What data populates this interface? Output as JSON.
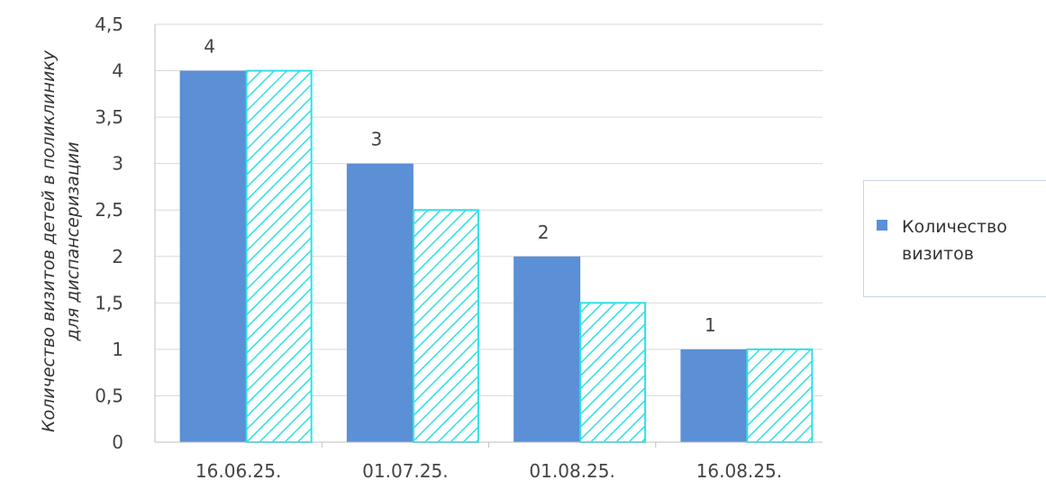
{
  "chart_data": {
    "type": "bar",
    "title": "",
    "xlabel": "",
    "ylabel": "Количество визитов детей в поликлинику для диспансеризации",
    "categories": [
      "16.06.25.",
      "01.07.25.",
      "01.08.25.",
      "16.08.25."
    ],
    "series": [
      {
        "name": "Количество визитов",
        "values": [
          4,
          3,
          2,
          1
        ],
        "color": "#5b8fd6",
        "data_labels": [
          "4",
          "3",
          "2",
          "1"
        ]
      },
      {
        "values": [
          4,
          2.5,
          1.5,
          1
        ],
        "color": "#2ee0e6",
        "pattern": "diagonal-hatch"
      }
    ],
    "yticks": [
      "0",
      "0,5",
      "1",
      "1,5",
      "2",
      "2,5",
      "3",
      "3,5",
      "4",
      "4,5"
    ],
    "ylim": [
      0,
      4.5
    ],
    "grid": true,
    "legend": "right"
  }
}
